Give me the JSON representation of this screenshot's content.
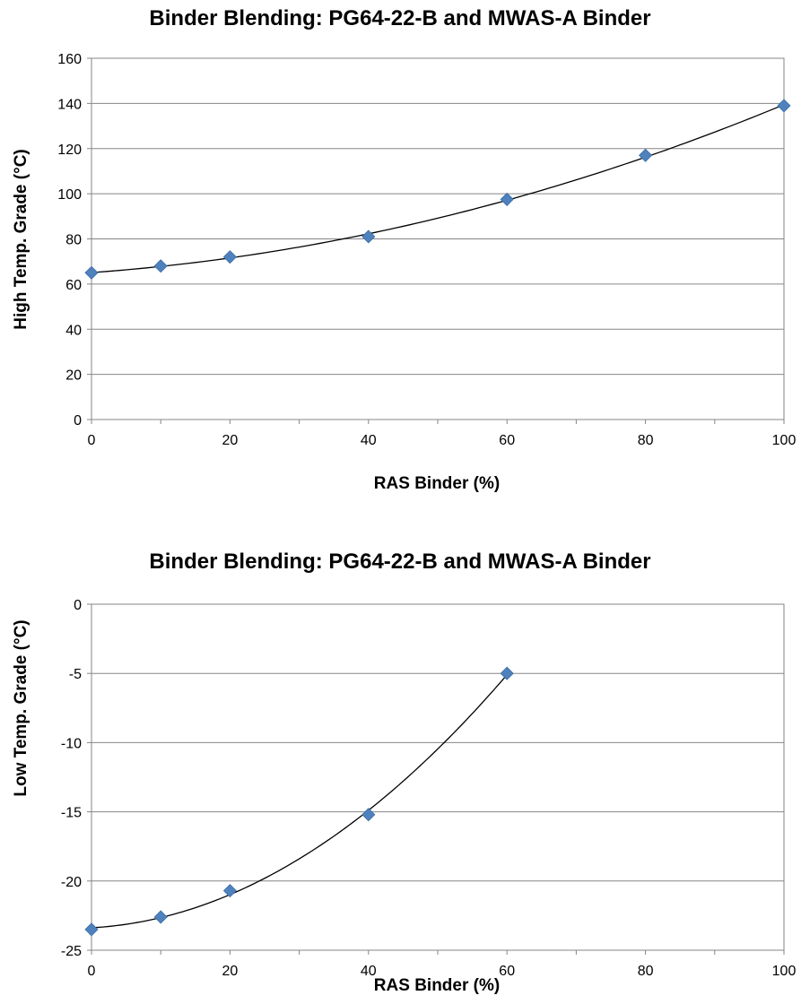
{
  "chart_data": [
    {
      "type": "scatter",
      "title": "Binder Blending: PG64-22-B and MWAS-A Binder",
      "xlabel": "RAS Binder (%)",
      "ylabel": "High Temp. Grade (°C)",
      "xlim": [
        0,
        100
      ],
      "ylim": [
        0,
        160
      ],
      "xticks": [
        0,
        20,
        40,
        60,
        80,
        100
      ],
      "yticks": [
        0,
        20,
        40,
        60,
        80,
        100,
        120,
        140,
        160
      ],
      "x": [
        0,
        10,
        20,
        40,
        60,
        80,
        100
      ],
      "y": [
        65,
        68,
        72,
        81,
        97.5,
        117,
        139
      ],
      "trendline": "polynomial",
      "marker_color": "#4f81bd",
      "grid": "horizontal"
    },
    {
      "type": "scatter",
      "title": "Binder Blending: PG64-22-B and MWAS-A Binder",
      "xlabel": "RAS Binder (%)",
      "ylabel": "Low Temp. Grade (°C)",
      "xlim": [
        0,
        100
      ],
      "ylim": [
        -25,
        0
      ],
      "xticks": [
        0,
        20,
        40,
        60,
        80,
        100
      ],
      "yticks": [
        -25,
        -20,
        -15,
        -10,
        -5,
        0
      ],
      "x": [
        0,
        10,
        20,
        40,
        60
      ],
      "y": [
        -23.5,
        -22.6,
        -20.7,
        -15.2,
        -5
      ],
      "trendline": "polynomial",
      "marker_color": "#4f81bd",
      "grid": "horizontal"
    }
  ]
}
